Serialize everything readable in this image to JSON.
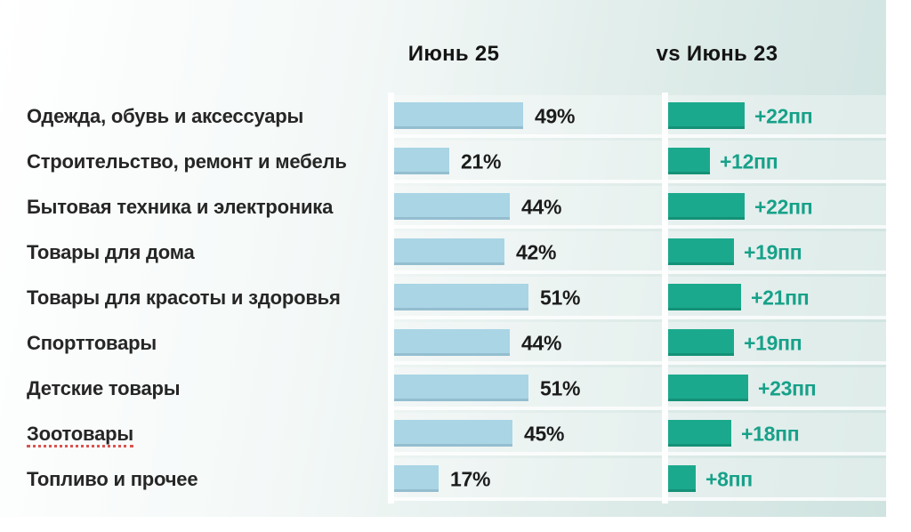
{
  "headers": {
    "col1": "Июнь 25",
    "col2": "vs Июнь 23"
  },
  "rows": [
    {
      "label": "Одежда, обувь и аксессуары",
      "june25": 49,
      "june25_label": "49%",
      "delta": 22,
      "delta_label": "+22пп",
      "misspelled": false
    },
    {
      "label": "Строительство, ремонт и мебель",
      "june25": 21,
      "june25_label": "21%",
      "delta": 12,
      "delta_label": "+12пп",
      "misspelled": false
    },
    {
      "label": "Бытовая техника и электроника",
      "june25": 44,
      "june25_label": "44%",
      "delta": 22,
      "delta_label": "+22пп",
      "misspelled": false
    },
    {
      "label": "Товары для дома",
      "june25": 42,
      "june25_label": "42%",
      "delta": 19,
      "delta_label": "+19пп",
      "misspelled": false
    },
    {
      "label": "Товары для красоты и здоровья",
      "june25": 51,
      "june25_label": "51%",
      "delta": 21,
      "delta_label": "+21пп",
      "misspelled": false
    },
    {
      "label": "Спорттовары",
      "june25": 44,
      "june25_label": "44%",
      "delta": 19,
      "delta_label": "+19пп",
      "misspelled": false
    },
    {
      "label": "Детские товары",
      "june25": 51,
      "june25_label": "51%",
      "delta": 23,
      "delta_label": "+23пп",
      "misspelled": false
    },
    {
      "label": "Зоотовары",
      "june25": 45,
      "june25_label": "45%",
      "delta": 18,
      "delta_label": "+18пп",
      "misspelled": true
    },
    {
      "label": "Топливо и прочее",
      "june25": 17,
      "june25_label": "17%",
      "delta": 8,
      "delta_label": "+8пп",
      "misspelled": false
    }
  ],
  "chart_data": {
    "type": "bar",
    "orientation": "horizontal",
    "categories": [
      "Одежда, обувь и аксессуары",
      "Строительство, ремонт и мебель",
      "Бытовая техника и электроника",
      "Товары для дома",
      "Товары для красоты и здоровья",
      "Спорттовары",
      "Детские товары",
      "Зоотовары",
      "Топливо и прочее"
    ],
    "series": [
      {
        "name": "Июнь 25",
        "unit": "%",
        "value_prefix": "",
        "values": [
          49,
          21,
          44,
          42,
          51,
          44,
          51,
          45,
          17
        ],
        "color": "#a9d5e5",
        "label_color": "#1c1c1c"
      },
      {
        "name": "vs Июнь 23",
        "unit": "пп",
        "value_prefix": "+",
        "values": [
          22,
          12,
          22,
          19,
          21,
          19,
          23,
          18,
          8
        ],
        "color": "#1ba98d",
        "label_color": "#17a189"
      }
    ],
    "title": "",
    "xlabel": "",
    "ylabel": "",
    "xlim": [
      0,
      60
    ],
    "grid": false,
    "legend_position": "top",
    "value_labels": "outside-end",
    "background": "white to pale teal gradient"
  },
  "colors": {
    "bar_blue": "#a9d5e5",
    "bar_green": "#1ba98d",
    "delta_text": "#17a189",
    "value_text": "#1c1c1c",
    "label_text": "#262626",
    "header_text": "#141414",
    "bg_from": "#ffffff",
    "bg_to": "#cfe3e0",
    "squiggle": "#d9534f"
  }
}
